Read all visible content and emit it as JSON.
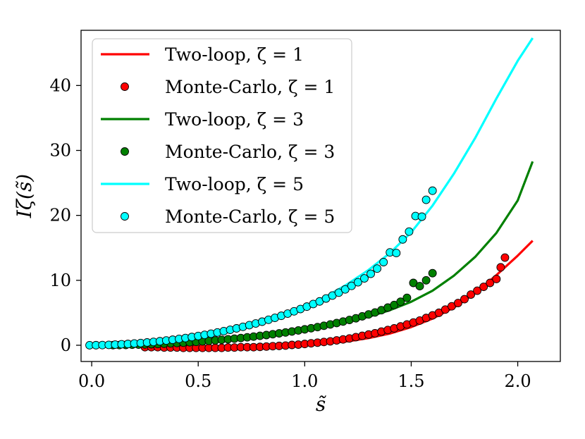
{
  "chart_data": {
    "type": "scatter",
    "title": "",
    "xlabel": "s̃",
    "ylabel": "Iζ(s̃)",
    "xlim": [
      -0.05,
      2.2
    ],
    "ylim": [
      -2.5,
      48.5
    ],
    "xticks": [
      0.0,
      0.5,
      1.0,
      1.5,
      2.0
    ],
    "xtick_labels": [
      "0.0",
      "0.5",
      "1.0",
      "1.5",
      "2.0"
    ],
    "yticks": [
      0,
      10,
      20,
      30,
      40
    ],
    "ytick_labels": [
      "0",
      "10",
      "20",
      "30",
      "40"
    ],
    "grid": false,
    "legend_position": "upper-left",
    "colors": {
      "zeta1": "#ff0000",
      "zeta3": "#008000",
      "zeta5": "#00ffff"
    },
    "series": [
      {
        "name": "Two-loop, ζ = 1",
        "kind": "line",
        "color": "#ff0000",
        "x": [
          0.0,
          0.1,
          0.2,
          0.3,
          0.4,
          0.5,
          0.6,
          0.7,
          0.8,
          0.9,
          1.0,
          1.1,
          1.2,
          1.3,
          1.4,
          1.5,
          1.6,
          1.7,
          1.8,
          1.9,
          2.0,
          2.07
        ],
        "y": [
          0,
          -0.1,
          -0.2,
          -0.3,
          -0.35,
          -0.4,
          -0.4,
          -0.35,
          -0.3,
          -0.2,
          0,
          0.3,
          0.6,
          1.1,
          1.8,
          2.8,
          4.1,
          5.8,
          8.0,
          10.8,
          13.8,
          16.1
        ]
      },
      {
        "name": "Monte-Carlo, ζ = 1",
        "kind": "points",
        "color": "#ff0000",
        "x": [
          0.25,
          0.28,
          0.31,
          0.34,
          0.37,
          0.4,
          0.43,
          0.46,
          0.49,
          0.52,
          0.55,
          0.58,
          0.61,
          0.64,
          0.67,
          0.7,
          0.73,
          0.76,
          0.79,
          0.82,
          0.85,
          0.88,
          0.91,
          0.94,
          0.97,
          1.0,
          1.03,
          1.06,
          1.09,
          1.12,
          1.15,
          1.18,
          1.21,
          1.24,
          1.27,
          1.3,
          1.33,
          1.36,
          1.39,
          1.42,
          1.45,
          1.48,
          1.51,
          1.54,
          1.57,
          1.6,
          1.63,
          1.66,
          1.69,
          1.72,
          1.75,
          1.78,
          1.81,
          1.84,
          1.87,
          1.9,
          1.92,
          1.94
        ],
        "y": [
          -0.3,
          -0.3,
          -0.3,
          -0.35,
          -0.35,
          -0.35,
          -0.4,
          -0.4,
          -0.4,
          -0.4,
          -0.4,
          -0.4,
          -0.4,
          -0.35,
          -0.35,
          -0.3,
          -0.3,
          -0.3,
          -0.25,
          -0.2,
          -0.15,
          -0.1,
          -0.05,
          0.05,
          0.1,
          0.2,
          0.3,
          0.4,
          0.5,
          0.6,
          0.75,
          0.9,
          1.05,
          1.25,
          1.45,
          1.65,
          1.85,
          2.1,
          2.35,
          2.6,
          2.9,
          3.2,
          3.5,
          3.8,
          4.2,
          4.6,
          5.0,
          5.5,
          6.0,
          6.5,
          7.1,
          7.8,
          8.4,
          9.0,
          9.6,
          10.2,
          12.0,
          13.5
        ]
      },
      {
        "name": "Two-loop, ζ = 3",
        "kind": "line",
        "color": "#008000",
        "x": [
          0.0,
          0.1,
          0.2,
          0.3,
          0.4,
          0.5,
          0.6,
          0.7,
          0.8,
          0.9,
          1.0,
          1.1,
          1.2,
          1.3,
          1.4,
          1.5,
          1.6,
          1.7,
          1.8,
          1.9,
          2.0,
          2.07
        ],
        "y": [
          0,
          0.02,
          0.07,
          0.16,
          0.3,
          0.48,
          0.72,
          1.0,
          1.35,
          1.75,
          2.25,
          2.85,
          3.55,
          4.4,
          5.4,
          6.7,
          8.4,
          10.7,
          13.6,
          17.3,
          22.3,
          28.3
        ]
      },
      {
        "name": "Monte-Carlo, ζ = 3",
        "kind": "points",
        "color": "#008000",
        "x": [
          0.1,
          0.13,
          0.16,
          0.19,
          0.22,
          0.25,
          0.28,
          0.31,
          0.34,
          0.37,
          0.4,
          0.43,
          0.46,
          0.49,
          0.52,
          0.55,
          0.58,
          0.61,
          0.64,
          0.67,
          0.7,
          0.73,
          0.76,
          0.79,
          0.82,
          0.85,
          0.88,
          0.91,
          0.94,
          0.97,
          1.0,
          1.03,
          1.06,
          1.09,
          1.12,
          1.15,
          1.18,
          1.21,
          1.24,
          1.27,
          1.3,
          1.33,
          1.36,
          1.39,
          1.42,
          1.45,
          1.48,
          1.51,
          1.54,
          1.57,
          1.6
        ],
        "y": [
          0.02,
          0.03,
          0.05,
          0.08,
          0.1,
          0.13,
          0.16,
          0.2,
          0.24,
          0.29,
          0.34,
          0.4,
          0.46,
          0.52,
          0.6,
          0.67,
          0.75,
          0.84,
          0.93,
          1.02,
          1.12,
          1.22,
          1.33,
          1.45,
          1.57,
          1.7,
          1.83,
          1.97,
          2.12,
          2.28,
          2.45,
          2.62,
          2.8,
          3.0,
          3.2,
          3.42,
          3.65,
          3.9,
          4.15,
          4.45,
          4.75,
          5.05,
          5.4,
          5.8,
          6.2,
          6.7,
          7.3,
          9.6,
          9.1,
          10.0,
          11.1
        ]
      },
      {
        "name": "Two-loop, ζ = 5",
        "kind": "line",
        "color": "#00ffff",
        "x": [
          0.0,
          0.1,
          0.2,
          0.3,
          0.4,
          0.5,
          0.6,
          0.7,
          0.8,
          0.9,
          1.0,
          1.1,
          1.2,
          1.3,
          1.4,
          1.5,
          1.6,
          1.7,
          1.8,
          1.9,
          2.0,
          2.07
        ],
        "y": [
          0,
          0.05,
          0.2,
          0.45,
          0.8,
          1.25,
          1.85,
          2.6,
          3.5,
          4.6,
          5.9,
          7.5,
          9.4,
          11.6,
          14.2,
          17.4,
          21.5,
          26.4,
          31.9,
          38.0,
          43.8,
          47.3
        ]
      },
      {
        "name": "Monte-Carlo, ζ = 5",
        "kind": "points",
        "color": "#00ffff",
        "x": [
          -0.01,
          0.02,
          0.05,
          0.08,
          0.11,
          0.14,
          0.17,
          0.2,
          0.23,
          0.26,
          0.29,
          0.32,
          0.35,
          0.38,
          0.41,
          0.44,
          0.47,
          0.5,
          0.53,
          0.56,
          0.59,
          0.62,
          0.65,
          0.68,
          0.71,
          0.74,
          0.77,
          0.8,
          0.83,
          0.86,
          0.89,
          0.92,
          0.95,
          0.98,
          1.01,
          1.04,
          1.07,
          1.1,
          1.13,
          1.16,
          1.19,
          1.22,
          1.25,
          1.28,
          1.31,
          1.34,
          1.37,
          1.4,
          1.43,
          1.46,
          1.49,
          1.52,
          1.55,
          1.57,
          1.6
        ],
        "y": [
          0,
          0.01,
          0.03,
          0.06,
          0.1,
          0.15,
          0.2,
          0.27,
          0.34,
          0.43,
          0.52,
          0.62,
          0.73,
          0.85,
          0.98,
          1.12,
          1.27,
          1.43,
          1.6,
          1.78,
          1.97,
          2.17,
          2.38,
          2.6,
          2.84,
          3.09,
          3.35,
          3.63,
          3.92,
          4.22,
          4.54,
          4.87,
          5.22,
          5.58,
          5.95,
          6.35,
          6.75,
          7.2,
          7.65,
          8.1,
          8.6,
          9.15,
          9.7,
          10.3,
          11.0,
          11.8,
          12.8,
          14.3,
          14.2,
          16.3,
          17.5,
          19.9,
          19.8,
          22.4,
          23.8
        ]
      }
    ]
  }
}
